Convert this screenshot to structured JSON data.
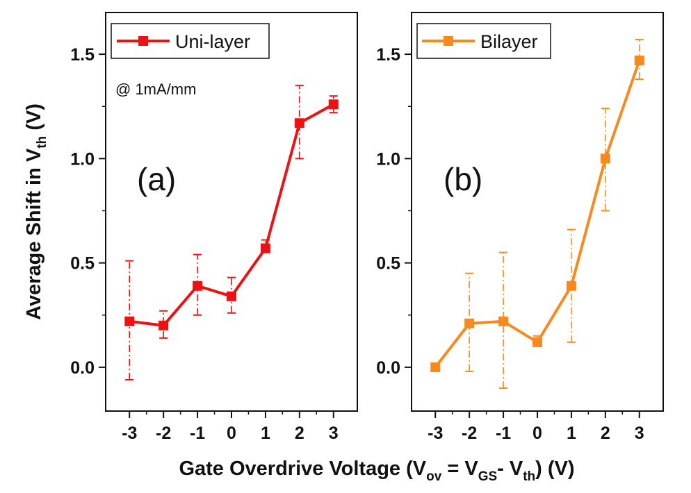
{
  "chart_data": [
    {
      "type": "line",
      "panel_label": "(a)",
      "annotation": "@ 1mA/mm",
      "series": [
        {
          "name": "Uni-layer",
          "color": "#ee1111",
          "x": [
            -3,
            -2,
            -1,
            0,
            1,
            2,
            3
          ],
          "values": [
            0.22,
            0.2,
            0.39,
            0.34,
            0.57,
            1.17,
            1.26
          ],
          "error_low": [
            -0.06,
            0.14,
            0.25,
            0.26,
            0.55,
            1.0,
            1.22
          ],
          "error_high": [
            0.51,
            0.27,
            0.54,
            0.43,
            0.61,
            1.35,
            1.3
          ]
        }
      ],
      "xlim": [
        -3.7,
        3.7
      ],
      "ylim": [
        -0.21,
        1.7
      ],
      "xticks": [
        "-3",
        "-2",
        "-1",
        "0",
        "1",
        "2",
        "3"
      ],
      "yticks": [
        "0.0",
        "0.5",
        "1.0",
        "1.5"
      ],
      "ylabel": "Average Shift in V",
      "ylabel_sub": "th",
      "ylabel_suffix": " (V)",
      "legend": "top-left"
    },
    {
      "type": "line",
      "panel_label": "(b)",
      "series": [
        {
          "name": "Bilayer",
          "color": "#f7891e",
          "x": [
            -3,
            -2,
            -1,
            0,
            1,
            2,
            3
          ],
          "values": [
            0.0,
            0.21,
            0.22,
            0.12,
            0.39,
            1.0,
            1.47
          ],
          "error_low": [
            0.0,
            -0.02,
            -0.1,
            0.1,
            0.12,
            0.75,
            1.38
          ],
          "error_high": [
            0.0,
            0.45,
            0.55,
            0.15,
            0.66,
            1.24,
            1.57
          ]
        }
      ],
      "xlim": [
        -3.7,
        3.7
      ],
      "ylim": [
        -0.21,
        1.7
      ],
      "xticks": [
        "-3",
        "-2",
        "-1",
        "0",
        "1",
        "2",
        "3"
      ],
      "yticks": [
        "0.0",
        "0.5",
        "1.0",
        "1.5"
      ],
      "legend": "top-left"
    }
  ],
  "xlabel": {
    "prefix": "Gate Overdrive Voltage (V",
    "sub1": "ov",
    "mid": " = V",
    "sub2": "GS",
    "mid2": "- V",
    "sub3": "th",
    "suffix": ") (V)"
  }
}
